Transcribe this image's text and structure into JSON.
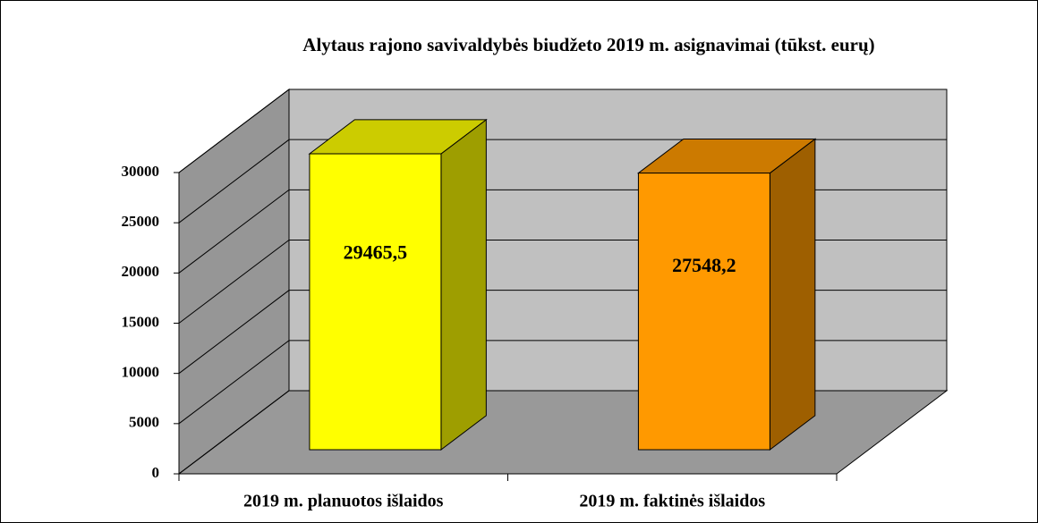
{
  "chart_data": {
    "type": "bar3d",
    "title": "Alytaus rajono savivaldybės biudžeto 2019 m. asignavimai (tūkst. eurų)",
    "categories": [
      "2019 m. planuotos išlaidos",
      "2019 m. faktinės išlaidos"
    ],
    "values": [
      29465.5,
      27548.2
    ],
    "value_labels": [
      "29465,5",
      "27548,2"
    ],
    "colors": [
      "#ffff00",
      "#ff9900"
    ],
    "ylim": [
      0,
      30000
    ],
    "yticks": [
      0,
      5000,
      10000,
      15000,
      20000,
      25000,
      30000
    ],
    "grid": true
  }
}
